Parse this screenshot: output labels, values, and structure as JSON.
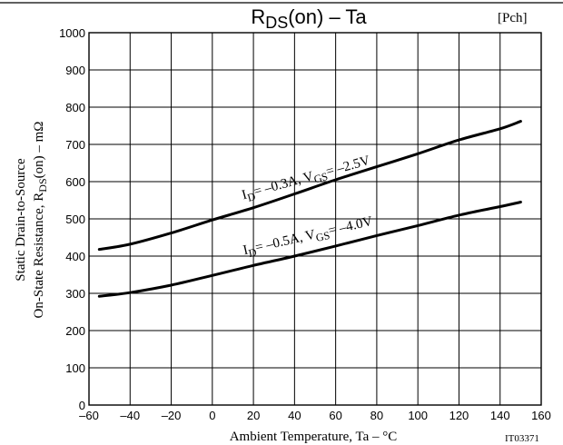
{
  "header": {
    "title_main": "R",
    "title_sub": "DS",
    "title_rest": "(on)  –  Ta",
    "tag": "[Pch]",
    "figure_id": "IT03371"
  },
  "chart_data": {
    "type": "line",
    "xlabel": "Ambient Temperature, Ta  –  °C",
    "ylabel": {
      "line1": "Static Drain-to-Source",
      "line2_pre": "On-State Resistance, R",
      "line2_sub": "DS",
      "line2_post": "(on)  –  mΩ"
    },
    "xlim": [
      -60,
      160
    ],
    "ylim": [
      0,
      1000
    ],
    "x_ticks": [
      -60,
      -40,
      -20,
      0,
      20,
      40,
      60,
      80,
      100,
      120,
      140,
      160
    ],
    "y_ticks": [
      0,
      100,
      200,
      300,
      400,
      500,
      600,
      700,
      800,
      900,
      1000
    ],
    "grid": true,
    "series": [
      {
        "name": "ID= –0.3A, VGS= –2.5V",
        "x": [
          -55,
          -40,
          -20,
          0,
          20,
          40,
          60,
          80,
          100,
          120,
          140,
          150
        ],
        "y": [
          418,
          432,
          462,
          497,
          530,
          567,
          605,
          640,
          675,
          712,
          742,
          762
        ]
      },
      {
        "name": "ID= –0.5A, VGS= –4.0V",
        "x": [
          -55,
          -40,
          -20,
          0,
          20,
          40,
          60,
          80,
          100,
          120,
          140,
          150
        ],
        "y": [
          292,
          302,
          322,
          348,
          375,
          400,
          427,
          455,
          482,
          510,
          533,
          545
        ]
      }
    ],
    "curve_labels": [
      {
        "series": 0,
        "pre": "I",
        "sub1": "D",
        "mid": "= –0.3A, V",
        "sub2": "GS",
        "post": "= –2.5V"
      },
      {
        "series": 1,
        "pre": "I",
        "sub1": "D",
        "mid": "= –0.5A, V",
        "sub2": "GS",
        "post": "= –4.0V"
      }
    ]
  }
}
